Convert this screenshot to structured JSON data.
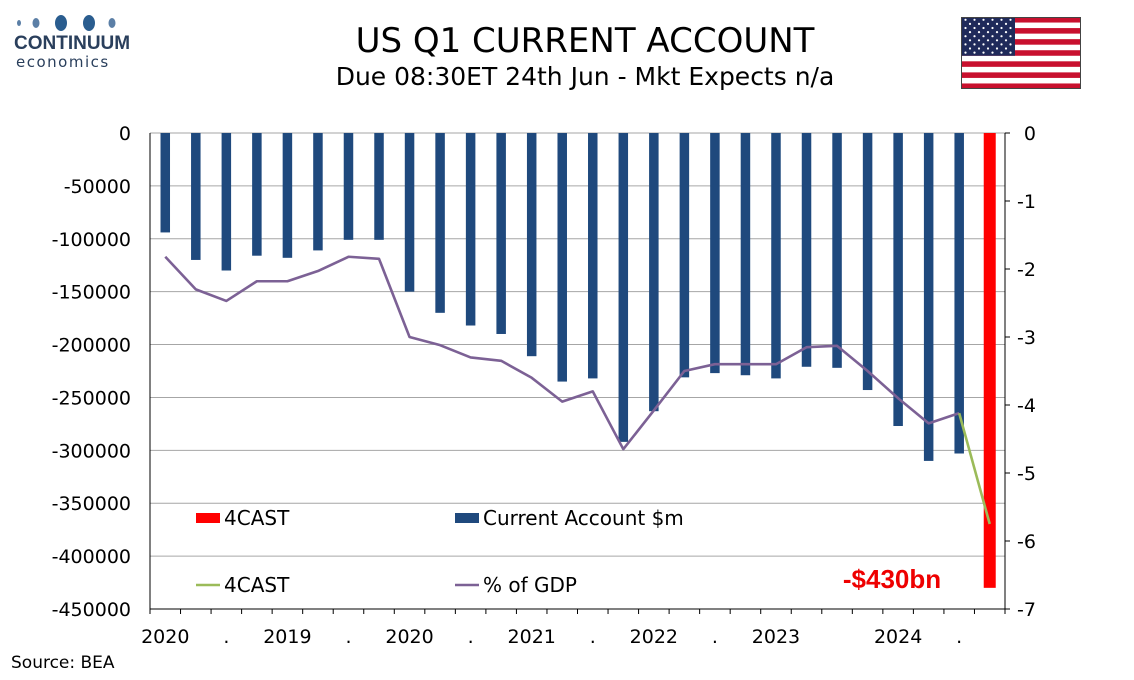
{
  "logo": {
    "name": "CONTINUUM",
    "sub": "economics"
  },
  "source": "Source: BEA",
  "colors": {
    "bar": "#1f497d",
    "forecast": "#ff0000",
    "line": "#7c6195",
    "forecast_line": "#9bbb59",
    "brand": "#2a3f5c"
  },
  "chart_data": {
    "type": "bar",
    "title": "US Q1 CURRENT ACCOUNT",
    "subtitle": "Due 08:30ET  24th Jun - Mkt Expects n/a",
    "x_tick_labels": [
      "2020",
      ".",
      "2019",
      ".",
      "2020",
      ".",
      "2021",
      ".",
      "2022",
      ".",
      "2023",
      "",
      "2024",
      "."
    ],
    "y_left": {
      "ticks": [
        "0",
        "-50000",
        "-100000",
        "-150000",
        "-200000",
        "-250000",
        "-300000",
        "-350000",
        "-400000",
        "-450000"
      ],
      "ylim": [
        -450000,
        0
      ]
    },
    "y_right": {
      "ticks": [
        "0",
        "-1",
        "-2",
        "-3",
        "-4",
        "-5",
        "-6",
        "-7"
      ],
      "ylim": [
        -7,
        0
      ]
    },
    "series": [
      {
        "name": "Current Account $m",
        "axis": "left",
        "kind": "bar",
        "values": [
          -94000,
          -120000,
          -130000,
          -116000,
          -118000,
          -111000,
          -101000,
          -101000,
          -150000,
          -170000,
          -182000,
          -190000,
          -211000,
          -235000,
          -232000,
          -292000,
          -263000,
          -231000,
          -227000,
          -229000,
          -232000,
          -221000,
          -222000,
          -243000,
          -277000,
          -310000,
          -303000,
          null
        ]
      },
      {
        "name": "4CAST",
        "axis": "left",
        "kind": "bar",
        "values": [
          null,
          null,
          null,
          null,
          null,
          null,
          null,
          null,
          null,
          null,
          null,
          null,
          null,
          null,
          null,
          null,
          null,
          null,
          null,
          null,
          null,
          null,
          null,
          null,
          null,
          null,
          null,
          -430000
        ]
      },
      {
        "name": "% of GDP",
        "axis": "right",
        "kind": "line",
        "values": [
          -1.82,
          -2.3,
          -2.47,
          -2.18,
          -2.18,
          -2.03,
          -1.82,
          -1.85,
          -3.0,
          -3.12,
          -3.3,
          -3.35,
          -3.6,
          -3.95,
          -3.8,
          -4.65,
          -4.08,
          -3.5,
          -3.4,
          -3.4,
          -3.4,
          -3.15,
          -3.13,
          -3.5,
          -3.9,
          -4.27,
          -4.12,
          null
        ]
      },
      {
        "name": "4CAST",
        "axis": "right",
        "kind": "line",
        "values": [
          null,
          null,
          null,
          null,
          null,
          null,
          null,
          null,
          null,
          null,
          null,
          null,
          null,
          null,
          null,
          null,
          null,
          null,
          null,
          null,
          null,
          null,
          null,
          null,
          null,
          null,
          -4.12,
          -5.75
        ]
      }
    ],
    "annotation": "-$430bn",
    "legend": [
      {
        "label": "4CAST",
        "type": "bar",
        "color": "#ff0000"
      },
      {
        "label": "Current Account $m",
        "type": "bar",
        "color": "#1f497d"
      },
      {
        "label": "4CAST",
        "type": "line",
        "color": "#9bbb59"
      },
      {
        "label": "% of GDP",
        "type": "line",
        "color": "#7c6195"
      }
    ]
  }
}
